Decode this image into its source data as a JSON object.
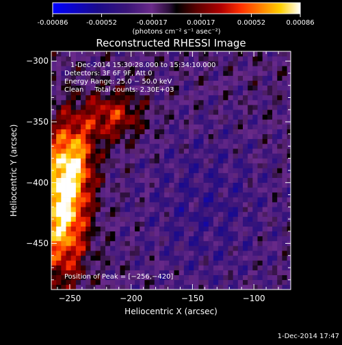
{
  "colorbar": {
    "tick_labels": [
      "-0.00086",
      "-0.00052",
      "-0.00017",
      "0.00017",
      "0.00052",
      "0.00086"
    ],
    "range": [
      -0.00086,
      0.00086
    ],
    "unit_label": "(photons cm⁻² s⁻¹ asec⁻²)",
    "colors": [
      "#0000ff",
      "#1a0a8c",
      "#3a1578",
      "#5a2080",
      "#6a2a8a",
      "#2b0f3a",
      "#000000",
      "#5a0000",
      "#b00000",
      "#ff3000",
      "#ff8000",
      "#ffd000",
      "#ffffff"
    ]
  },
  "footer": {
    "timestamp": "1-Dec-2014 17:47"
  },
  "chart_data": {
    "type": "heatmap",
    "title": "Reconstructed RHESSI Image",
    "xlabel": "Heliocentric X (arcsec)",
    "ylabel": "Heliocentric Y (arcsec)",
    "xlim": [
      -265,
      -70
    ],
    "ylim": [
      -488,
      -292
    ],
    "x_ticks": [
      -250,
      -200,
      -150,
      -100
    ],
    "y_ticks": [
      -300,
      -350,
      -400,
      -450
    ],
    "x_tick_labels": [
      "−250",
      "−200",
      "−150",
      "−100"
    ],
    "y_tick_labels": [
      "−300",
      "−350",
      "−400",
      "−450"
    ],
    "info_lines": [
      "1-Dec-2014 15:30:28.000 to 15:34:10.000",
      "Detectors: 3F 6F 9F, Att 0",
      "Energy Range: 25.0 − 50.0 keV",
      "Clean     Total counts: 2.30E+03"
    ],
    "peak_label": "Position of Peak = [−256,−420]",
    "peak_position": [
      -256,
      -420
    ],
    "value_range": [
      -0.00086,
      0.00086
    ],
    "cell_size_arcsec": 4
  }
}
